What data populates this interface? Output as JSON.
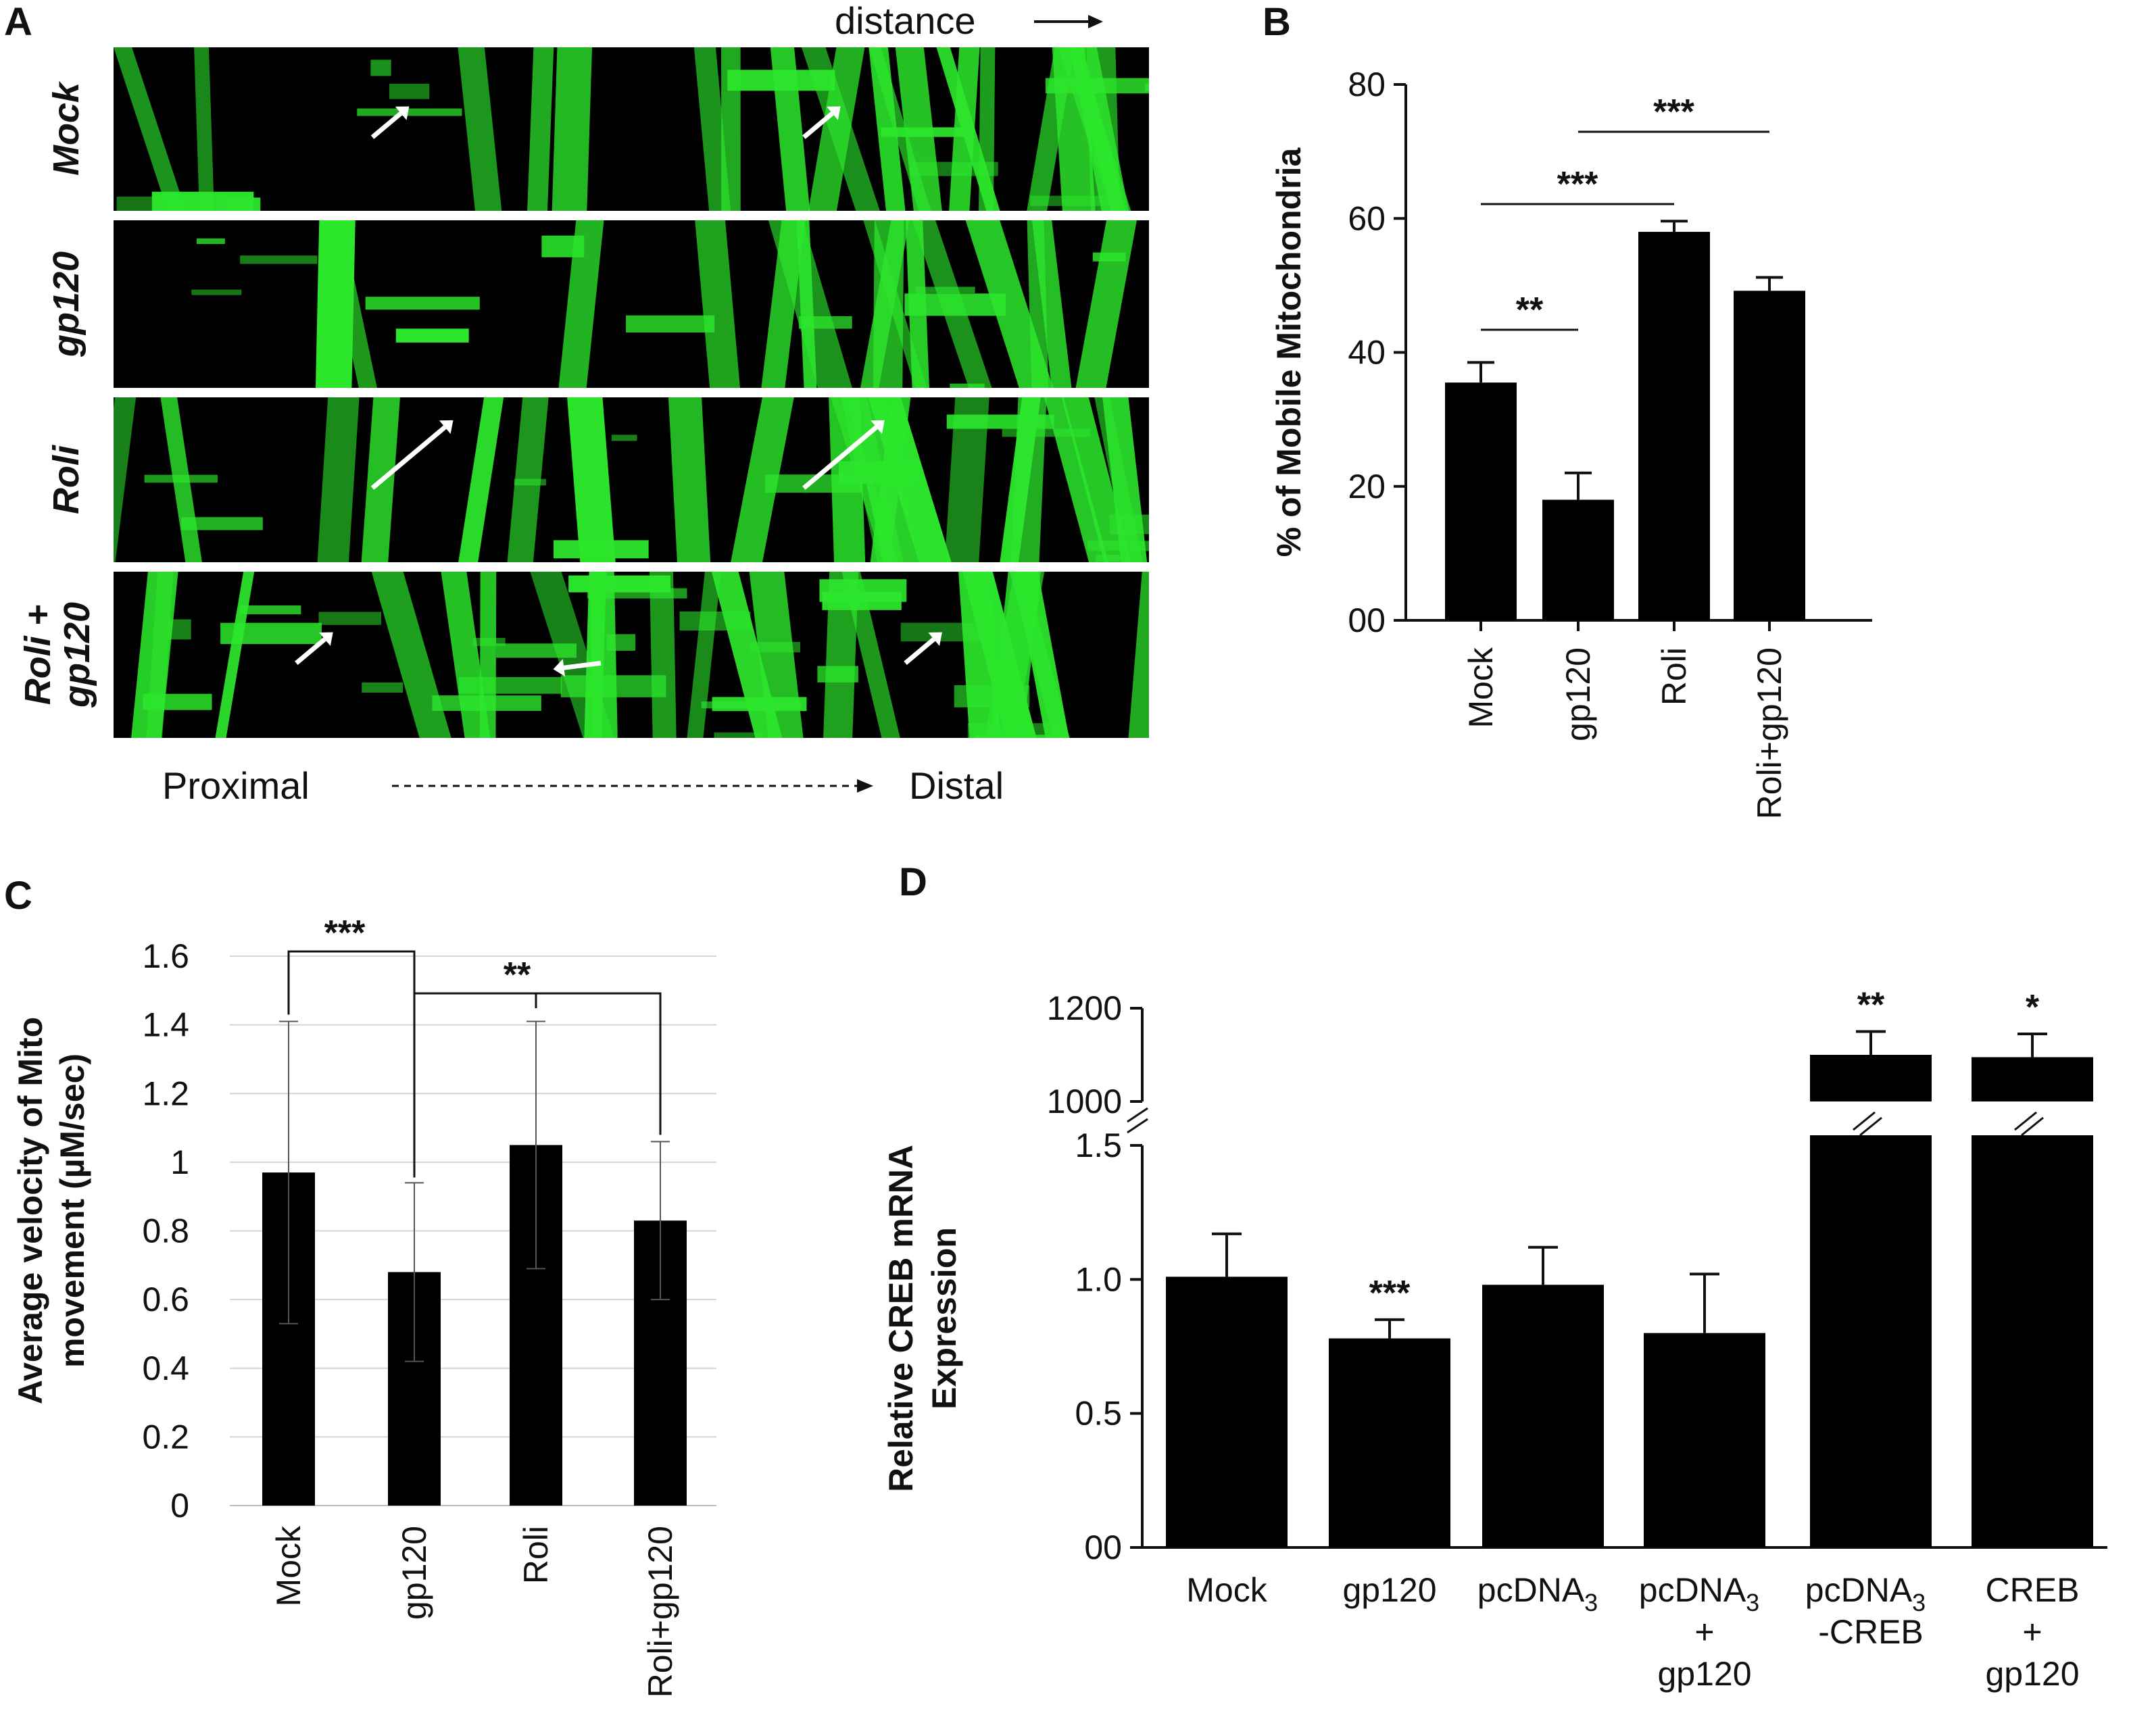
{
  "panels": {
    "a": {
      "letter": "A"
    },
    "b": {
      "letter": "B"
    },
    "c": {
      "letter": "C"
    },
    "d": {
      "letter": "D"
    }
  },
  "panel_a": {
    "distance_label": "distance",
    "proximal_label": "Proximal",
    "distal_label": "Distal",
    "rows": [
      {
        "label_lines": [
          "Mock"
        ],
        "arrows": 2
      },
      {
        "label_lines": [
          "gp120"
        ],
        "arrows": 0
      },
      {
        "label_lines": [
          "Roli"
        ],
        "arrows": 2
      },
      {
        "label_lines": [
          "Roli +",
          "gp120"
        ],
        "arrows": 3
      }
    ],
    "colors": {
      "signal": "#2ce62c",
      "background": "#000000",
      "arrow": "#ffffff"
    }
  },
  "chart_data": [
    {
      "id": "B",
      "type": "bar",
      "categories": [
        "Mock",
        "gp120",
        "Roli",
        "Roli+gp120"
      ],
      "values": [
        35.5,
        18,
        58,
        49.2
      ],
      "errors": [
        3,
        4,
        1.6,
        2
      ],
      "ylabel": "% of Mobile Mitochondria",
      "ylim": [
        0,
        80
      ],
      "yticks": [
        0,
        20,
        40,
        60,
        80
      ],
      "ytick_labels": [
        "00",
        "20",
        "40",
        "60",
        "80"
      ],
      "grid": false,
      "significance": [
        {
          "from": "Mock",
          "to": "gp120",
          "label": "**"
        },
        {
          "from": "Mock",
          "to": "Roli",
          "label": "***"
        },
        {
          "from": "gp120",
          "to": "Roli+gp120",
          "label": "***"
        }
      ]
    },
    {
      "id": "C",
      "type": "bar",
      "categories": [
        "Mock",
        "gp120",
        "Roli",
        "Roli+gp120"
      ],
      "values": [
        0.97,
        0.68,
        1.05,
        0.83
      ],
      "errors": [
        0.44,
        0.26,
        0.36,
        0.23
      ],
      "ylabel_lines": [
        "Average velocity of Mito",
        "movement (µM/sec)"
      ],
      "ylim": [
        0,
        1.6
      ],
      "yticks": [
        0,
        0.2,
        0.4,
        0.6,
        0.8,
        1,
        1.2,
        1.4,
        1.6
      ],
      "ytick_labels": [
        "0",
        "0.2",
        "0.4",
        "0.6",
        "0.8",
        "1",
        "1.2",
        "1.4",
        "1.6"
      ],
      "grid": true,
      "significance": [
        {
          "from": "Mock",
          "to": "gp120",
          "label": "***"
        },
        {
          "from": "gp120",
          "to": "Roli+gp120",
          "label": "**"
        }
      ]
    },
    {
      "id": "D",
      "type": "bar",
      "categories": [
        {
          "lines": [
            "Mock"
          ]
        },
        {
          "lines": [
            "gp120"
          ]
        },
        {
          "lines": [
            "pcDNA",
            "3"
          ]
        },
        {
          "lines": [
            "pcDNA",
            "3",
            "+",
            "gp120"
          ]
        },
        {
          "lines": [
            "pcDNA",
            "3",
            "-CREB"
          ]
        },
        {
          "lines": [
            "CREB",
            "+",
            "gp120"
          ]
        }
      ],
      "values": [
        1.01,
        0.78,
        0.98,
        0.8,
        1100,
        1095
      ],
      "errors": [
        0.16,
        0.07,
        0.14,
        0.22,
        50,
        50
      ],
      "ylabel_lines": [
        "Relative CREB mRNA",
        "Expression"
      ],
      "broken_axis": {
        "lower": [
          0,
          1.5
        ],
        "upper": [
          1000,
          1200
        ]
      },
      "yticks_lower": [
        "00",
        "0.5",
        "1.0",
        "1.5"
      ],
      "yticks_upper": [
        "1000",
        "1200"
      ],
      "grid": false,
      "significance_labels": [
        "",
        "***",
        "",
        "",
        "**",
        "*"
      ]
    }
  ]
}
